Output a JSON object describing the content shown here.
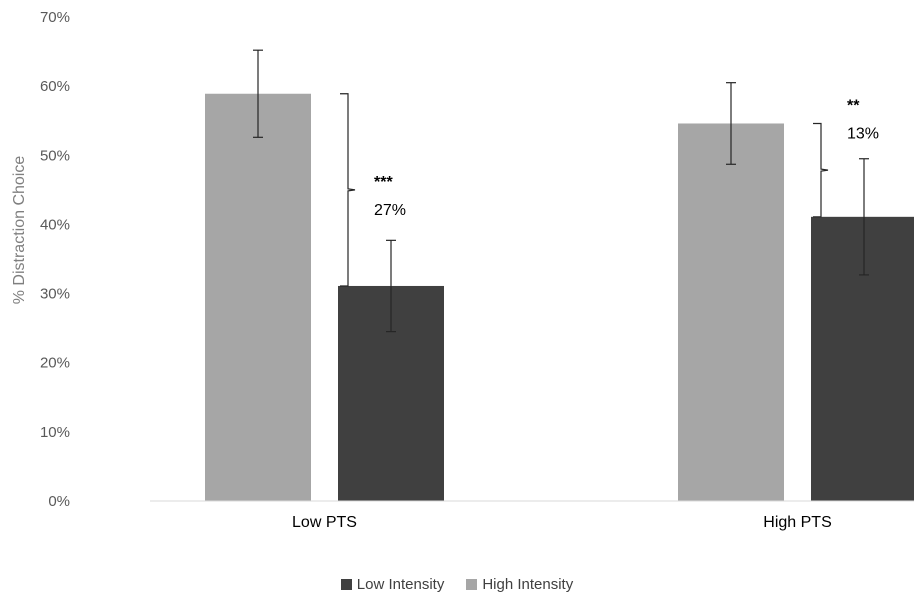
{
  "chart_data": {
    "type": "bar",
    "ylabel": "% Distraction Choice",
    "xlabel": "",
    "ylim": [
      0,
      70
    ],
    "y_ticks": [
      "0%",
      "10%",
      "20%",
      "30%",
      "40%",
      "50%",
      "60%",
      "70%"
    ],
    "y_tick_values": [
      0,
      10,
      20,
      30,
      40,
      50,
      60,
      70
    ],
    "categories": [
      "Low PTS",
      "High PTS"
    ],
    "series": [
      {
        "name": "High Intensity",
        "color": "#a6a6a6",
        "values": [
          58.9,
          54.6
        ],
        "error": [
          6.3,
          5.9
        ]
      },
      {
        "name": "Low Intensity",
        "color": "#404040",
        "values": [
          31.1,
          41.1
        ],
        "error": [
          6.6,
          8.4
        ]
      }
    ],
    "annotations": [
      {
        "category": "Low PTS",
        "stars": "***",
        "label": "27%"
      },
      {
        "category": "High PTS",
        "stars": "**",
        "label": "13%"
      }
    ],
    "legend": {
      "position": "bottom",
      "entries": [
        {
          "label": "Low Intensity",
          "color": "#404040"
        },
        {
          "label": "High Intensity",
          "color": "#a6a6a6"
        }
      ]
    },
    "grid": false
  }
}
